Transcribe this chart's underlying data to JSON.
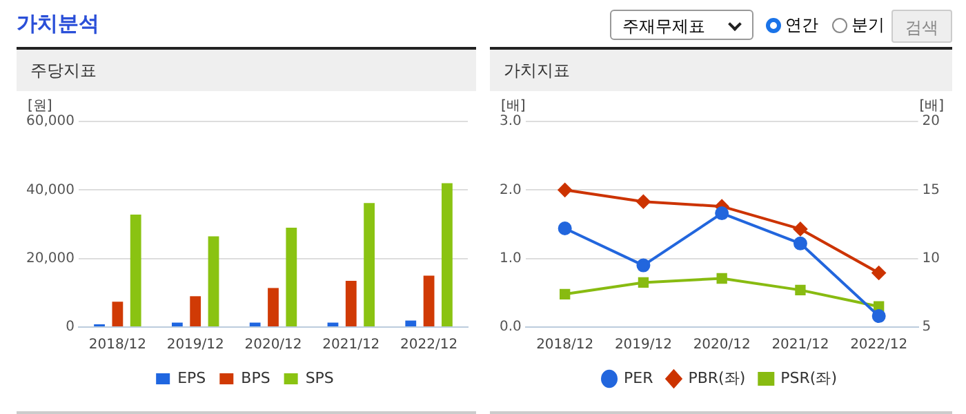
{
  "chart_data": [
    {
      "type": "other",
      "title": "가치분석",
      "annotations": [
        "주재무제표",
        "연간",
        "분기",
        "검색"
      ]
    },
    {
      "type": "bar",
      "title": "주당지표",
      "ylabel": "[원]",
      "categories": [
        "2018/12",
        "2019/12",
        "2020/12",
        "2021/12",
        "2022/12"
      ],
      "series": [
        {
          "name": "EPS",
          "color": "#1f66e0",
          "values": [
            800,
            1300,
            1300,
            1300,
            1900
          ]
        },
        {
          "name": "BPS",
          "color": "#d03a05",
          "values": [
            7400,
            9000,
            11400,
            13500,
            15000
          ]
        },
        {
          "name": "SPS",
          "color": "#8ac312",
          "values": [
            32800,
            26500,
            29000,
            36200,
            42000
          ]
        }
      ],
      "ylim": [
        0,
        60000
      ],
      "yticks": [
        0,
        {
          "value": 20000,
          "label": "20,000"
        },
        {
          "value": 40000,
          "label": "40,000"
        },
        {
          "value": 60000,
          "label": "60,000"
        }
      ],
      "grid": "y",
      "legend": "bottom"
    },
    {
      "type": "line",
      "title": "가치지표",
      "ylabel": "[배]",
      "y2label": "[배]",
      "categories": [
        "2018/12",
        "2019/12",
        "2020/12",
        "2021/12",
        "2022/12"
      ],
      "series": [
        {
          "name": "PER",
          "color": "#2266dd",
          "axis": "y2",
          "marker": "circle",
          "values": [
            12.2,
            9.5,
            13.3,
            11.1,
            5.8
          ]
        },
        {
          "name": "PBR(좌)",
          "color": "#cc3300",
          "marker": "diamond",
          "values": [
            2.0,
            1.83,
            1.76,
            1.43,
            0.79
          ]
        },
        {
          "name": "PSR(좌)",
          "color": "#88bb11",
          "marker": "square",
          "values": [
            0.48,
            0.65,
            0.71,
            0.54,
            0.3
          ]
        }
      ],
      "ylim": [
        0,
        3
      ],
      "yticks": [
        {
          "value": 0,
          "label": "0.0"
        },
        {
          "value": 1,
          "label": "1.0"
        },
        {
          "value": 2,
          "label": "2.0"
        },
        {
          "value": 3,
          "label": "3.0"
        }
      ],
      "y2lim": [
        5,
        20
      ],
      "y2ticks": [
        5,
        10,
        15,
        20
      ],
      "grid": "y",
      "legend": "bottom"
    }
  ]
}
